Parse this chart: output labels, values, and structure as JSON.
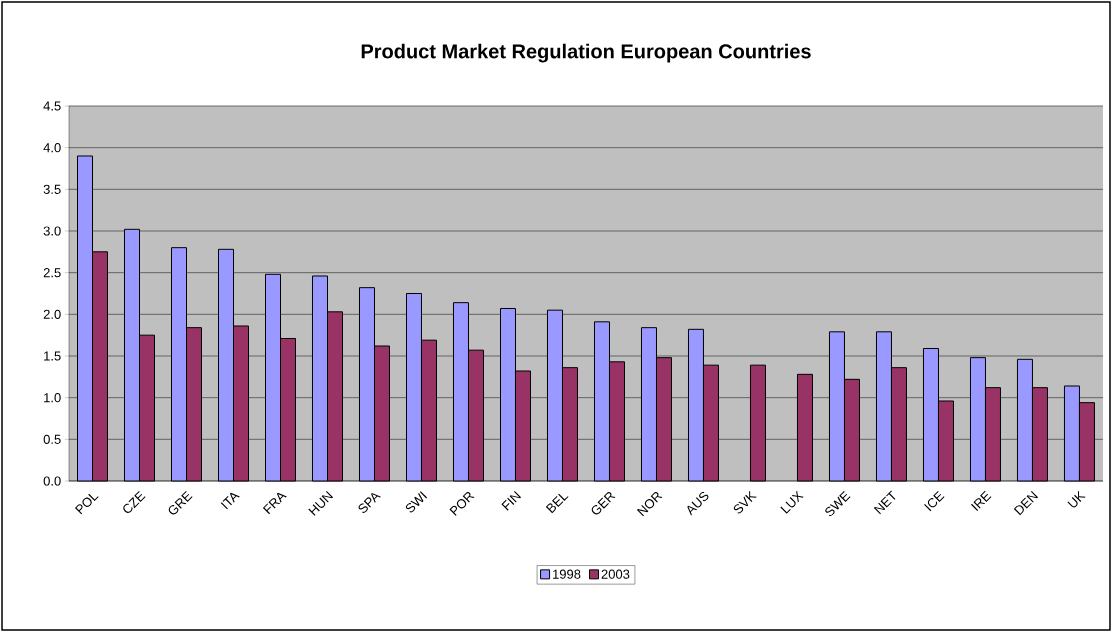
{
  "chart_data": {
    "type": "bar",
    "title": "Product Market Regulation European Countries",
    "categories": [
      "POL",
      "CZE",
      "GRE",
      "ITA",
      "FRA",
      "HUN",
      "SPA",
      "SWI",
      "POR",
      "FIN",
      "BEL",
      "GER",
      "NOR",
      "AUS",
      "SVK",
      "LUX",
      "SWE",
      "NET",
      "ICE",
      "IRE",
      "DEN",
      "UK"
    ],
    "series": [
      {
        "name": "1998",
        "color": "#9999ff",
        "values": [
          3.9,
          3.02,
          2.8,
          2.78,
          2.48,
          2.46,
          2.32,
          2.25,
          2.14,
          2.07,
          2.05,
          1.91,
          1.84,
          1.82,
          null,
          null,
          1.79,
          1.79,
          1.59,
          1.48,
          1.46,
          1.14
        ]
      },
      {
        "name": "2003",
        "color": "#993366",
        "values": [
          2.75,
          1.75,
          1.84,
          1.86,
          1.71,
          2.03,
          1.62,
          1.69,
          1.57,
          1.32,
          1.36,
          1.43,
          1.48,
          1.39,
          1.39,
          1.28,
          1.22,
          1.36,
          0.96,
          1.12,
          1.12,
          0.94
        ]
      }
    ],
    "ylim": [
      0,
      4.5
    ],
    "yticks": [
      {
        "value": 0,
        "label": "0.0"
      },
      0.5,
      {
        "value": 1,
        "label": "1.0"
      },
      1.5,
      {
        "value": 2,
        "label": "2.0"
      },
      2.5,
      {
        "value": 3,
        "label": "3.0"
      },
      3.5,
      {
        "value": 4,
        "label": "4.0"
      },
      4.5
    ],
    "grid": "y",
    "legend": "bottom"
  }
}
